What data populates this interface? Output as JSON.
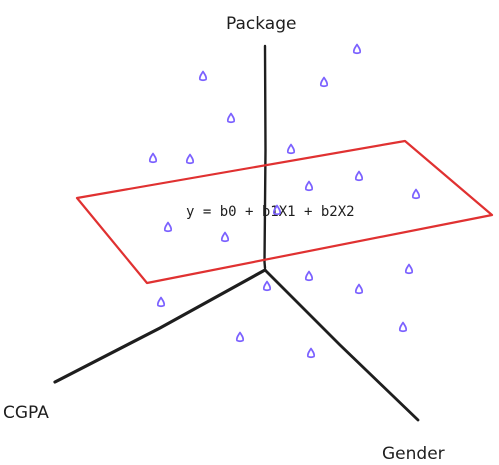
{
  "axes": {
    "vertical_label": "Package",
    "left_label": "CGPA",
    "right_label": "Gender"
  },
  "plane": {
    "equation": "y = b0 + b1X1 + b2X2"
  },
  "colors": {
    "axis": "#1e1e1e",
    "plane": "#e03131",
    "points": "#7b61ff",
    "background": "#ffffff"
  },
  "data_point_count": 21
}
